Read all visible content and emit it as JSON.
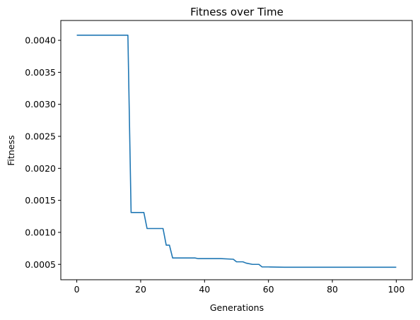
{
  "chart_data": {
    "type": "line",
    "title": "Fitness over Time",
    "xlabel": "Generations",
    "ylabel": "Fitness",
    "xlim": [
      -5,
      105
    ],
    "ylim": [
      0.00026,
      0.00431
    ],
    "xticks": [
      0,
      20,
      40,
      60,
      80,
      100
    ],
    "yticks": [
      0.0005,
      0.001,
      0.0015,
      0.002,
      0.0025,
      0.003,
      0.0035,
      0.004
    ],
    "ytick_labels": [
      "0.0005",
      "0.0010",
      "0.0015",
      "0.0020",
      "0.0025",
      "0.0030",
      "0.0035",
      "0.0040"
    ],
    "grid": false,
    "line_color": "#1f77b4",
    "series": [
      {
        "x": [
          0,
          16,
          17,
          18,
          21,
          22,
          26,
          27,
          28,
          29,
          30,
          31,
          37,
          38,
          44,
          45,
          49,
          50,
          52,
          53,
          55,
          57,
          58,
          60,
          65,
          100
        ],
        "y": [
          0.00408,
          0.00408,
          0.00131,
          0.00131,
          0.00131,
          0.00106,
          0.00106,
          0.00106,
          0.0008,
          0.0008,
          0.0006,
          0.0006,
          0.0006,
          0.00059,
          0.00059,
          0.00059,
          0.00058,
          0.00054,
          0.00054,
          0.00052,
          0.0005,
          0.0005,
          0.00046,
          0.00046,
          0.000455,
          0.000455
        ]
      }
    ]
  }
}
